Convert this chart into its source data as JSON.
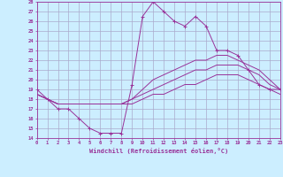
{
  "xlabel": "Windchill (Refroidissement éolien,°C)",
  "bg_color": "#cceeff",
  "grid_color": "#aaaacc",
  "line_color": "#993399",
  "xmin": 0,
  "xmax": 23,
  "ymin": 14,
  "ymax": 28,
  "yticks": [
    14,
    15,
    16,
    17,
    18,
    19,
    20,
    21,
    22,
    23,
    24,
    25,
    26,
    27,
    28
  ],
  "xticks": [
    0,
    1,
    2,
    3,
    4,
    5,
    6,
    7,
    8,
    9,
    10,
    11,
    12,
    13,
    14,
    15,
    16,
    17,
    18,
    19,
    20,
    21,
    22,
    23
  ],
  "series": [
    {
      "x": [
        0,
        1,
        2,
        3,
        4,
        5,
        6,
        7,
        8,
        9,
        10,
        11,
        12,
        13,
        14,
        15,
        16,
        17,
        18,
        19,
        20,
        21,
        22,
        23
      ],
      "y": [
        19,
        18,
        17,
        17,
        16,
        15,
        14.5,
        14.5,
        14.5,
        19.5,
        26.5,
        28,
        27,
        26,
        25.5,
        26.5,
        25.5,
        23,
        23,
        22.5,
        21,
        19.5,
        19,
        19
      ],
      "marker": "+"
    },
    {
      "x": [
        0,
        1,
        2,
        3,
        4,
        5,
        6,
        7,
        8,
        9,
        10,
        11,
        12,
        13,
        14,
        15,
        16,
        17,
        18,
        19,
        20,
        21,
        22,
        23
      ],
      "y": [
        18.5,
        18,
        17.5,
        17.5,
        17.5,
        17.5,
        17.5,
        17.5,
        17.5,
        18,
        19,
        20,
        20.5,
        21,
        21.5,
        22,
        22,
        22.5,
        22.5,
        22,
        21.5,
        21,
        20,
        19
      ],
      "marker": null
    },
    {
      "x": [
        0,
        1,
        2,
        3,
        4,
        5,
        6,
        7,
        8,
        9,
        10,
        11,
        12,
        13,
        14,
        15,
        16,
        17,
        18,
        19,
        20,
        21,
        22,
        23
      ],
      "y": [
        18.5,
        18,
        17.5,
        17.5,
        17.5,
        17.5,
        17.5,
        17.5,
        17.5,
        18,
        18.5,
        19,
        19.5,
        20,
        20.5,
        21,
        21,
        21.5,
        21.5,
        21.5,
        21,
        20.5,
        19.5,
        19
      ],
      "marker": null
    },
    {
      "x": [
        0,
        1,
        2,
        3,
        4,
        5,
        6,
        7,
        8,
        9,
        10,
        11,
        12,
        13,
        14,
        15,
        16,
        17,
        18,
        19,
        20,
        21,
        22,
        23
      ],
      "y": [
        18.5,
        18,
        17.5,
        17.5,
        17.5,
        17.5,
        17.5,
        17.5,
        17.5,
        17.5,
        18,
        18.5,
        18.5,
        19,
        19.5,
        19.5,
        20,
        20.5,
        20.5,
        20.5,
        20,
        19.5,
        19,
        18.5
      ],
      "marker": null
    }
  ]
}
